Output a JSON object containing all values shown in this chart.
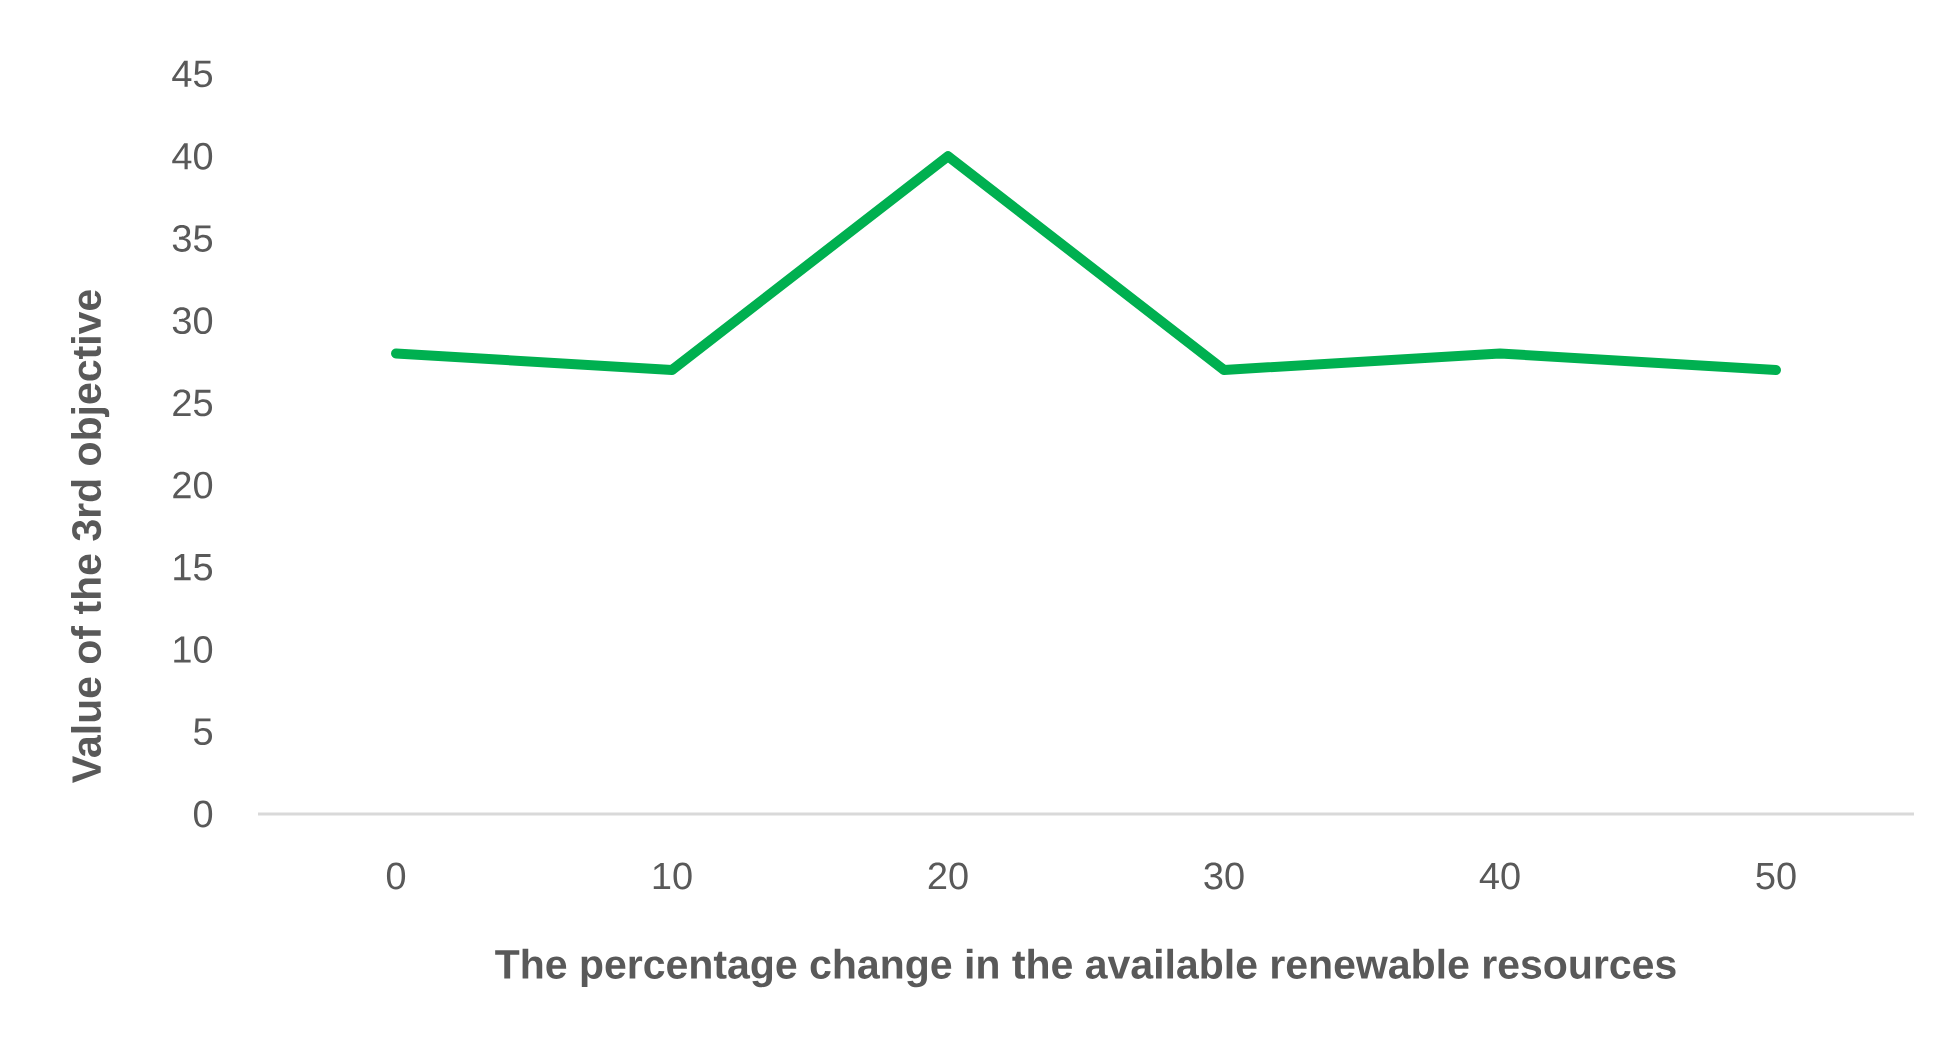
{
  "chart_data": {
    "type": "line",
    "xlabel": "The percentage change in the available renewable resources",
    "ylabel": "Value of the 3rd objective",
    "categories": [
      "0",
      "10",
      "20",
      "30",
      "40",
      "50"
    ],
    "series": [
      {
        "color": "#00b050",
        "values": [
          28,
          27,
          40,
          27,
          28,
          27
        ]
      }
    ],
    "ylim": [
      0,
      45
    ],
    "yticks": [
      0,
      5,
      10,
      15,
      20,
      25,
      30,
      35,
      40,
      45
    ],
    "grid": false,
    "legend": false,
    "marker": "none",
    "line_style": "solid"
  }
}
